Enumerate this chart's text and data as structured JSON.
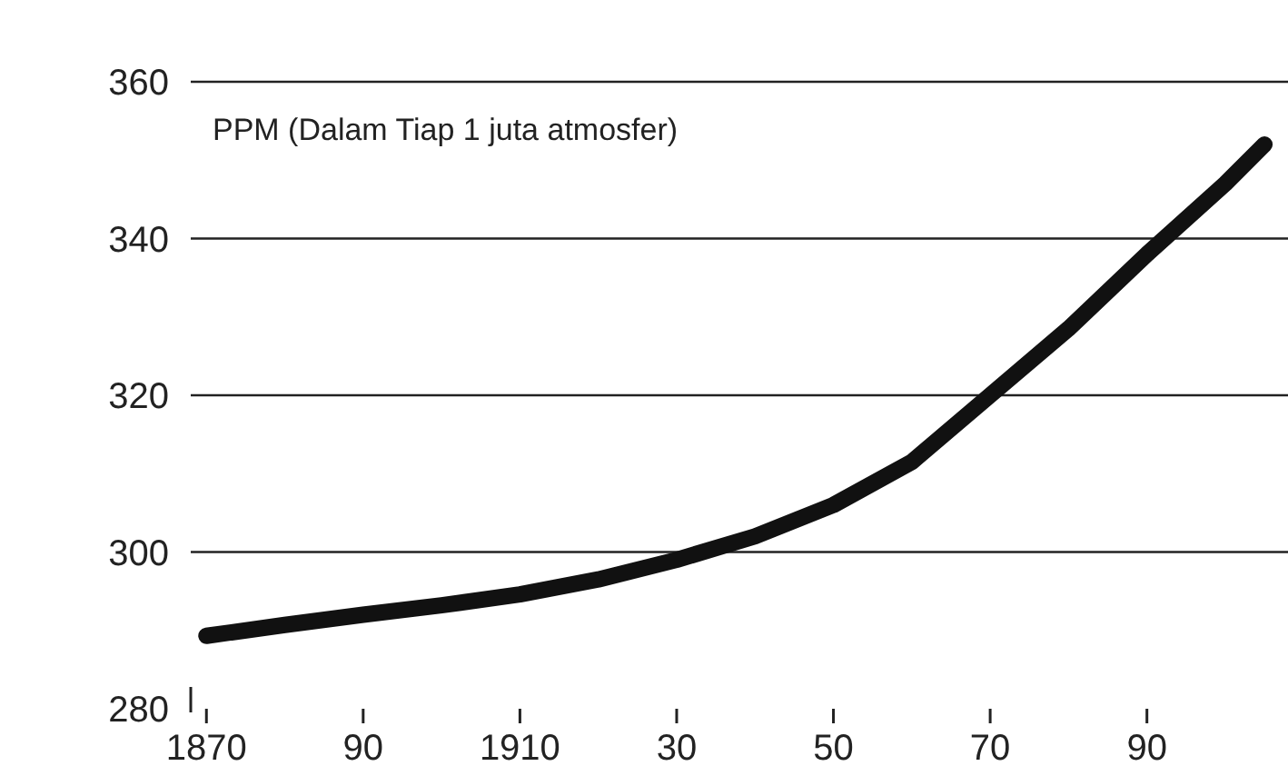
{
  "chart_data": {
    "type": "line",
    "title": "PPM (Dalam Tiap 1 juta atmosfer)",
    "x": [
      1870,
      1880,
      1890,
      1900,
      1910,
      1920,
      1930,
      1940,
      1950,
      1960,
      1970,
      1980,
      1990,
      2000,
      2005
    ],
    "series": [
      {
        "color": "#111111",
        "values": [
          289.3,
          290.7,
          292,
          293.2,
          294.6,
          296.5,
          299,
          302,
          306,
          311.5,
          320,
          328.5,
          338,
          347,
          352
        ]
      }
    ],
    "xlim": [
      1868,
      2008
    ],
    "ylim": [
      280,
      360
    ],
    "xticks": [
      1870,
      {
        "value": 1890,
        "label": "90"
      },
      1910,
      {
        "value": 1930,
        "label": "30"
      },
      {
        "value": 1950,
        "label": "50"
      },
      {
        "value": 1970,
        "label": "70"
      },
      {
        "value": 1990,
        "label": "90"
      }
    ],
    "yticks": [
      280,
      300,
      320,
      340,
      360
    ],
    "grid": "y",
    "marker": "none",
    "line_style": "solid"
  }
}
